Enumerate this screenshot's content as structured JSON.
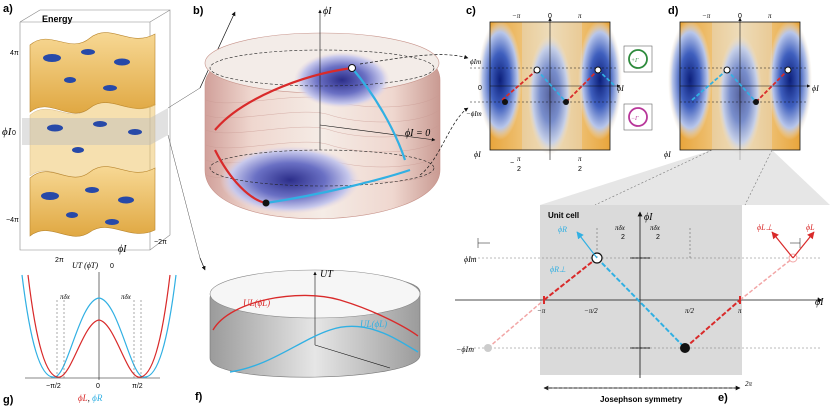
{
  "panels": {
    "a": "a)",
    "b": "b)",
    "c": "c)",
    "d": "d)",
    "e": "e)",
    "f": "f)",
    "g": "g)"
  },
  "panel_a": {
    "energy_label": "Energy",
    "yaxis_label": "ϕI",
    "xaxis_label": "ϕI",
    "ticks_z": [
      "4π",
      "0",
      "−4π"
    ],
    "ticks_x": [
      "−2π",
      "0",
      "2π"
    ]
  },
  "panel_b": {
    "axis_top": "ϕI",
    "phi_zero": "ϕI = 0"
  },
  "panel_c": {
    "top_ticks": [
      "−π",
      "0",
      "π"
    ],
    "left_top": "ϕIm",
    "left_mid": "0",
    "left_bot": "−ϕIm",
    "right_label": "ϕI",
    "bottom_label": "ϕI",
    "bottom_ticks": [
      "−",
      "π",
      "2",
      "π",
      "2"
    ],
    "plus_op": "+Γ",
    "minus_op": "−Γ"
  },
  "panel_d": {
    "top_ticks": [
      "−π",
      "0",
      "π"
    ],
    "right_label": "ϕI",
    "bottom_label": "ϕI"
  },
  "panel_e": {
    "unit_cell": "Unit cell",
    "yaxis": "ϕI",
    "xaxis": "ϕI",
    "phiR": "ϕR",
    "phiRperp": "ϕR⊥",
    "phiLperp": "ϕL⊥",
    "phiL": "ϕL",
    "pidx": "πδx",
    "two": "2",
    "phi_im": "ϕIm",
    "minus_phi_im": "−ϕIm",
    "ticks": [
      "−π",
      "−π/2",
      "π/2",
      "π"
    ],
    "two_pi": "2π",
    "josephson": "Josephson symmetry"
  },
  "panel_f": {
    "ut": "UT",
    "ul": "UL(ϕL)",
    "ur": "UL(ϕL)"
  },
  "panel_g": {
    "title": "UT (ϕT)",
    "pidx": "πδx",
    "ticks": [
      "−π/2",
      "0",
      "π/2"
    ],
    "xlabel_l": "ϕL",
    "xlabel_sep": ", ",
    "xlabel_r": "ϕR"
  },
  "colors": {
    "red": "#d92a2a",
    "cyan": "#31b0e3",
    "blue": "#1f3fa0",
    "orange": "#e8a53c",
    "green": "#2e8b3d",
    "magenta": "#b8379a",
    "gray": "#e3e3e3"
  }
}
